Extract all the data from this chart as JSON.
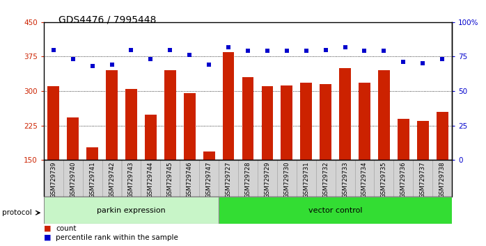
{
  "title": "GDS4476 / 7995448",
  "samples": [
    "GSM729739",
    "GSM729740",
    "GSM729741",
    "GSM729742",
    "GSM729743",
    "GSM729744",
    "GSM729745",
    "GSM729746",
    "GSM729747",
    "GSM729727",
    "GSM729728",
    "GSM729729",
    "GSM729730",
    "GSM729731",
    "GSM729732",
    "GSM729733",
    "GSM729734",
    "GSM729735",
    "GSM729736",
    "GSM729737",
    "GSM729738"
  ],
  "bar_values": [
    310,
    242,
    178,
    345,
    305,
    248,
    345,
    295,
    168,
    385,
    330,
    310,
    312,
    318,
    315,
    350,
    318,
    345,
    240,
    235,
    255
  ],
  "dot_values": [
    80,
    73,
    68,
    69,
    80,
    73,
    80,
    76,
    69,
    82,
    79,
    79,
    79,
    79,
    80,
    82,
    79,
    79,
    71,
    70,
    73
  ],
  "bar_color": "#cc2200",
  "dot_color": "#0000cc",
  "ylim_left": [
    150,
    450
  ],
  "ylim_right": [
    0,
    100
  ],
  "yticks_left": [
    150,
    225,
    300,
    375,
    450
  ],
  "yticks_right": [
    0,
    25,
    50,
    75,
    100
  ],
  "yticklabels_right": [
    "0",
    "25",
    "50",
    "75",
    "100%"
  ],
  "grid_values": [
    225,
    300,
    375
  ],
  "parkin_count": 9,
  "vector_count": 12,
  "group1_label": "parkin expression",
  "group2_label": "vector control",
  "protocol_label": "protocol",
  "legend_count_label": "count",
  "legend_pct_label": "percentile rank within the sample",
  "bg_plot": "#ffffff",
  "bg_xtick": "#d3d3d3",
  "bg_group1": "#c8f5c8",
  "bg_group2": "#33dd33",
  "title_fontsize": 10,
  "bar_width": 0.6,
  "dot_size": 20
}
